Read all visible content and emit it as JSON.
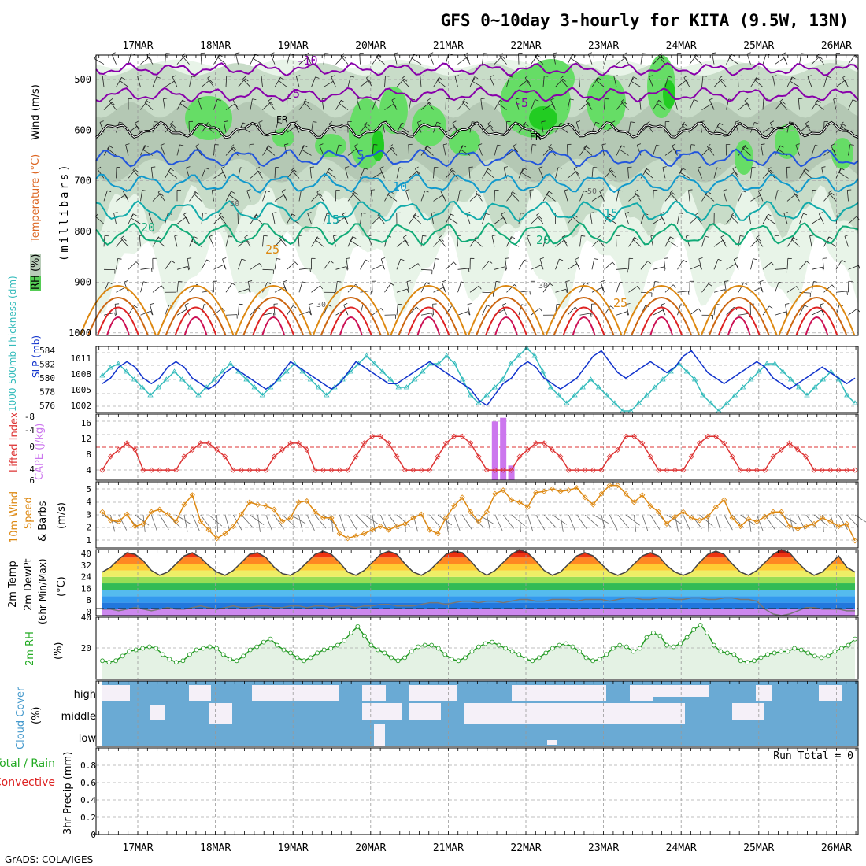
{
  "header": {
    "title": "GFS 0~10day 3-hourly for KITA (9.5W, 13N)",
    "credit": "GrADS: COLA/IGES"
  },
  "colors": {
    "rh_green_light": "#e8f4e8",
    "rh_green": "#c8dcc8",
    "rh_bright": "#66dd66",
    "rh_brighter": "#22cc22",
    "temp_purple": "#8800aa",
    "temp_blue": "#2255dd",
    "temp_cyan": "#1199cc",
    "temp_teal": "#11aaaa",
    "temp_green": "#11aa77",
    "temp_orange": "#dd8811",
    "temp_red": "#dd2222",
    "thickness_cyan": "#33bbbb",
    "slp_blue": "#1133cc",
    "li_red": "#dd3333",
    "cape_purple": "#cc77ee",
    "wind_orange": "#dd8811",
    "cloud_blue": "#6aaad4",
    "cloud_clear": "#f5f0f8"
  },
  "chart_data": [
    {
      "id": "upper-air",
      "type": "heatmap",
      "ylabel_wind": "Wind (m/s)",
      "ylabel_temp": "Temperature (°C)",
      "ylabel_rh": "RH (%)",
      "ylabel_p": "(millibars)",
      "ylim": [
        1000,
        450
      ],
      "pressure_ticks": [
        500,
        600,
        700,
        800,
        900,
        1000
      ],
      "isotherm_labels": [
        "-10",
        "-5",
        "-5",
        "FR",
        "FR",
        "5",
        "5",
        "10",
        "15",
        "15",
        "20",
        "20",
        "25",
        "25"
      ],
      "rh_labels": [
        "50",
        "50",
        "30",
        "30"
      ],
      "isotherms": [
        {
          "name": "-10",
          "level": 480
        },
        {
          "name": "-5",
          "level": 530
        },
        {
          "name": "FR",
          "level": 600
        },
        {
          "name": "5",
          "level": 655
        },
        {
          "name": "10",
          "level": 705
        },
        {
          "name": "15",
          "level": 760
        },
        {
          "name": "20",
          "level": 805
        }
      ]
    },
    {
      "id": "slp-thickness",
      "type": "line",
      "ylabel_thickness": "1000-500mb Thickness (dm)",
      "ylabel_slp": "SLP (mb)",
      "thickness_ticks": [
        "584",
        "582",
        "580",
        "578",
        "576"
      ],
      "slp_ticks": [
        "1011",
        "1008",
        "1005",
        "1002"
      ],
      "thickness_range": [
        576,
        584
      ],
      "slp_range": [
        1001,
        1012.5
      ],
      "series": [
        {
          "name": "thickness",
          "values": [
            580.5,
            581.5,
            582,
            581,
            580,
            579,
            578,
            579,
            580,
            581,
            580,
            579,
            578,
            579,
            580,
            581,
            582,
            581,
            580,
            579,
            578,
            579,
            580,
            581,
            582,
            581,
            580,
            579,
            578,
            579,
            580,
            581,
            582,
            583,
            582,
            581,
            580,
            579,
            579,
            580,
            581,
            582,
            582,
            583,
            582,
            580,
            578,
            577,
            578,
            579,
            580,
            582,
            583,
            584,
            583,
            581,
            579,
            578,
            577,
            578,
            579,
            580,
            579,
            578,
            577,
            576,
            576,
            577,
            578,
            579,
            580,
            581,
            582,
            581,
            580,
            578,
            577,
            576,
            577,
            578,
            579,
            580,
            581,
            582,
            582,
            581,
            580,
            579,
            578,
            579,
            580,
            581,
            580,
            578,
            577
          ]
        },
        {
          "name": "slp",
          "values": [
            1006,
            1007,
            1009,
            1010,
            1009,
            1007,
            1006,
            1007,
            1009,
            1010,
            1009,
            1007,
            1006,
            1005,
            1006,
            1008,
            1009,
            1008,
            1007,
            1006,
            1005,
            1006,
            1008,
            1010,
            1009,
            1008,
            1007,
            1006,
            1005,
            1006,
            1008,
            1010,
            1009,
            1008,
            1007,
            1006,
            1006,
            1007,
            1008,
            1009,
            1010,
            1009,
            1008,
            1007,
            1006,
            1005,
            1003,
            1002,
            1004,
            1006,
            1007,
            1009,
            1010,
            1009,
            1007,
            1006,
            1005,
            1006,
            1007,
            1009,
            1011,
            1012,
            1010,
            1008,
            1007,
            1008,
            1009,
            1010,
            1009,
            1008,
            1009,
            1011,
            1012,
            1010,
            1008,
            1007,
            1006,
            1007,
            1008,
            1009,
            1010,
            1009,
            1007,
            1006,
            1005,
            1006,
            1007,
            1008,
            1009,
            1008,
            1007,
            1006,
            1007
          ]
        }
      ]
    },
    {
      "id": "li-cape",
      "type": "line",
      "ylabel_li": "Lifted Index",
      "ylabel_cape": "CAPE (J/kg)",
      "li_ticks": [
        "-8",
        "-4",
        "0",
        "4",
        "6"
      ],
      "cape_ticks": [
        "16",
        "12",
        "8",
        "4"
      ],
      "series": [
        {
          "name": "lifted_index",
          "values": [
            6,
            4,
            3,
            2,
            3,
            6,
            6,
            6,
            6,
            6,
            4,
            3,
            2,
            2,
            3,
            4,
            6,
            6,
            6,
            6,
            6,
            4,
            3,
            2,
            2,
            3,
            6,
            6,
            6,
            6,
            6,
            4,
            2,
            1,
            1,
            2,
            4,
            6,
            6,
            6,
            6,
            4,
            2,
            1,
            1,
            2,
            4,
            6,
            6,
            6,
            6,
            4,
            3,
            2,
            2,
            3,
            4,
            6,
            6,
            6,
            6,
            6,
            4,
            3,
            1,
            1,
            2,
            4,
            6,
            6,
            6,
            6,
            4,
            2,
            1,
            1,
            2,
            4,
            6,
            6,
            6,
            6,
            4,
            3,
            2,
            3,
            4,
            6,
            6,
            6,
            6,
            6,
            6
          ]
        },
        {
          "name": "cape",
          "bars": [
            {
              "index": 48,
              "value": 16
            },
            {
              "index": 49,
              "value": 17
            },
            {
              "index": 50,
              "value": 4
            }
          ]
        }
      ]
    },
    {
      "id": "wind10m",
      "type": "line",
      "ylabel": "10m Wind Speed & Barbs (m/s)",
      "ylabel_wind": "10m Wind",
      "ylabel_speed": "Speed",
      "ylabel_barbs": "& Barbs",
      "ylabel_units": "(m/s)",
      "ylim": [
        0,
        5.5
      ],
      "y_ticks": [
        "5",
        "4",
        "3",
        "2",
        "1"
      ],
      "series": [
        {
          "name": "speed",
          "values": [
            3,
            2.3,
            2.2,
            2.8,
            1.8,
            2,
            3,
            3.2,
            2.8,
            2.2,
            3.6,
            4.4,
            2.2,
            1.5,
            0.8,
            1.2,
            1.8,
            2.8,
            3.8,
            3.6,
            3.5,
            3.2,
            2.2,
            2.5,
            3.8,
            3.9,
            3,
            2.5,
            2.5,
            1.2,
            0.8,
            1,
            1.2,
            1.5,
            1.8,
            1.5,
            1.8,
            2,
            2.5,
            2.8,
            1.5,
            1.2,
            2.5,
            3.5,
            4.2,
            3,
            2.2,
            3,
            4.5,
            4.8,
            4,
            3.8,
            3.4,
            4.6,
            4.7,
            4.9,
            4.7,
            4.8,
            5,
            4.2,
            3.6,
            4.5,
            5.2,
            5.2,
            4.5,
            3.8,
            4.4,
            3.5,
            3,
            2,
            2.6,
            3,
            2.5,
            2.3,
            2.6,
            3.4,
            4,
            2.5,
            1.8,
            2.4,
            2.2,
            2.6,
            3,
            3,
            1.8,
            1.6,
            1.8,
            2,
            2.5,
            2.2,
            1.8,
            2,
            0.6
          ]
        }
      ]
    },
    {
      "id": "temp2m",
      "type": "area",
      "ylabel": "2m Temp 2m DewPt (6hr Min/Max) (°C)",
      "ylabel_temp": "2m Temp",
      "ylabel_dewpt": "2m DewPt",
      "ylabel_minmax": "(6hr Min/Max)",
      "ylabel_units": "(°C)",
      "ylim": [
        0,
        41
      ],
      "y_ticks": [
        "40",
        "32",
        "24",
        "16",
        "8",
        "0"
      ],
      "series": [
        {
          "name": "temp",
          "values": [
            27,
            30,
            35,
            39,
            38,
            34,
            28,
            25,
            27,
            32,
            37,
            39,
            36,
            31,
            27,
            25,
            28,
            33,
            38,
            39,
            36,
            30,
            26,
            25,
            28,
            33,
            38,
            40,
            38,
            33,
            27,
            25,
            28,
            33,
            38,
            40,
            38,
            32,
            27,
            25,
            28,
            33,
            38,
            40,
            39,
            34,
            28,
            25,
            28,
            33,
            38,
            41,
            39,
            34,
            28,
            25,
            27,
            32,
            37,
            39,
            37,
            32,
            27,
            25,
            27,
            32,
            37,
            39,
            37,
            31,
            27,
            25,
            27,
            33,
            38,
            40,
            38,
            32,
            27,
            25,
            28,
            33,
            38,
            41,
            39,
            33,
            28,
            25,
            27,
            32,
            37,
            30,
            27
          ]
        },
        {
          "name": "dewpoint",
          "values": [
            4,
            4,
            3,
            4,
            5,
            4,
            3,
            4,
            5,
            4,
            4,
            5,
            6,
            5,
            4,
            5,
            6,
            5,
            5,
            6,
            6,
            5,
            5,
            6,
            6,
            5,
            6,
            6,
            5,
            6,
            6,
            5,
            6,
            6,
            7,
            7,
            6,
            6,
            6,
            7,
            8,
            8,
            7,
            8,
            9,
            9,
            8,
            9,
            9,
            8,
            9,
            10,
            10,
            9,
            9,
            10,
            10,
            10,
            9,
            10,
            10,
            10,
            9,
            10,
            11,
            11,
            10,
            10,
            11,
            11,
            10,
            10,
            11,
            11,
            10,
            10,
            11,
            11,
            10,
            10,
            9,
            4,
            1,
            0,
            1,
            3,
            5,
            5,
            4,
            4,
            4,
            3,
            3
          ]
        }
      ]
    },
    {
      "id": "rh2m",
      "type": "area",
      "ylabel": "2m RH (%)",
      "ylabel_rh": "2m RH",
      "ylabel_units": "(%)",
      "ylim": [
        0,
        40
      ],
      "y_ticks": [
        "40",
        "20"
      ],
      "series": [
        {
          "name": "rh",
          "values": [
            12,
            11,
            12,
            15,
            18,
            19,
            20,
            21,
            20,
            16,
            13,
            11,
            12,
            16,
            19,
            20,
            21,
            20,
            16,
            13,
            12,
            15,
            19,
            21,
            24,
            26,
            22,
            19,
            17,
            14,
            12,
            14,
            17,
            19,
            20,
            22,
            25,
            30,
            34,
            28,
            22,
            19,
            17,
            14,
            12,
            14,
            18,
            21,
            22,
            22,
            20,
            16,
            13,
            12,
            14,
            18,
            21,
            23,
            24,
            22,
            20,
            18,
            16,
            13,
            12,
            14,
            17,
            20,
            22,
            23,
            21,
            18,
            14,
            12,
            13,
            16,
            20,
            22,
            21,
            18,
            20,
            27,
            30,
            28,
            22,
            21,
            23,
            27,
            32,
            35,
            30,
            22,
            18,
            17,
            16,
            12,
            11,
            12,
            14,
            16,
            17,
            18,
            18,
            20,
            19,
            17,
            15,
            14,
            15,
            18,
            20,
            22,
            26
          ]
        }
      ]
    },
    {
      "id": "cloud",
      "type": "heatmap",
      "ylabel": "Cloud Cover (%)",
      "ylabel_cloud": "Cloud Cover",
      "ylabel_units": "(%)",
      "levels": [
        "high",
        "middle",
        "low"
      ]
    },
    {
      "id": "precip",
      "type": "bar",
      "ylabel": "3hr Precip (mm)",
      "ylabel_precip": "3hr Precip (mm)",
      "ylabel_total": "Total / Rain",
      "ylabel_conv": "Convective",
      "ylim": [
        0,
        1
      ],
      "y_ticks": [
        "0.8",
        "0.6",
        "0.4",
        "0.2",
        "0"
      ],
      "run_total": "Run Total = 0",
      "values": []
    }
  ],
  "x_axis": {
    "dates": [
      "17MAR",
      "18MAR",
      "19MAR",
      "20MAR",
      "21MAR",
      "22MAR",
      "23MAR",
      "24MAR",
      "25MAR",
      "26MAR"
    ]
  }
}
